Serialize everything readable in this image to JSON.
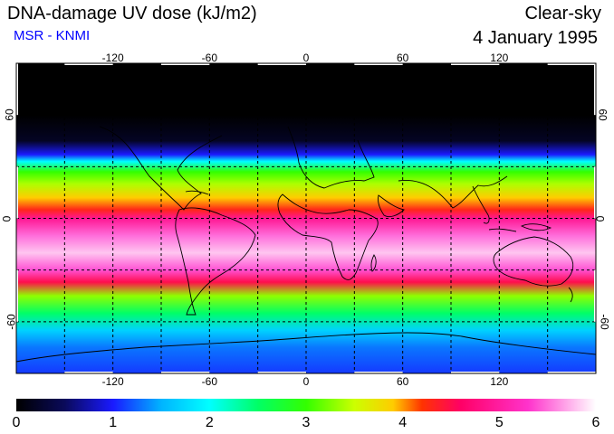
{
  "header": {
    "title": "DNA-damage UV dose (kJ/m2)",
    "subtitle": "MSR - KNMI",
    "subtitle_color": "#0000ff",
    "condition": "Clear-sky",
    "date": "4 January 1995"
  },
  "map": {
    "projection": "equirectangular",
    "lon_range": [
      -180,
      180
    ],
    "lat_range": [
      -90,
      90
    ],
    "lon_ticks": [
      {
        "value": -120,
        "label": "-120"
      },
      {
        "value": -60,
        "label": "-60"
      },
      {
        "value": 0,
        "label": "0"
      },
      {
        "value": 60,
        "label": "60"
      },
      {
        "value": 120,
        "label": "120"
      }
    ],
    "lat_ticks": [
      {
        "value": 60,
        "label": "60"
      },
      {
        "value": 0,
        "label": "0"
      },
      {
        "value": -60,
        "label": "-60"
      }
    ],
    "field_bands": [
      {
        "lat": 90,
        "value": 0.0
      },
      {
        "lat": 60,
        "value": 0.0
      },
      {
        "lat": 45,
        "value": 0.2
      },
      {
        "lat": 37,
        "value": 1.0
      },
      {
        "lat": 33,
        "value": 2.0
      },
      {
        "lat": 27,
        "value": 3.0
      },
      {
        "lat": 20,
        "value": 3.4
      },
      {
        "lat": 12,
        "value": 3.9
      },
      {
        "lat": 5,
        "value": 4.3
      },
      {
        "lat": 0,
        "value": 4.9
      },
      {
        "lat": -10,
        "value": 5.5
      },
      {
        "lat": -20,
        "value": 5.8
      },
      {
        "lat": -30,
        "value": 5.4
      },
      {
        "lat": -37,
        "value": 4.5
      },
      {
        "lat": -45,
        "value": 3.3
      },
      {
        "lat": -55,
        "value": 2.5
      },
      {
        "lat": -65,
        "value": 1.7
      },
      {
        "lat": -75,
        "value": 1.3
      },
      {
        "lat": -90,
        "value": 1.1
      }
    ]
  },
  "colorbar": {
    "min": 0,
    "max": 6,
    "labels": [
      "0",
      "1",
      "2",
      "3",
      "4",
      "5",
      "6"
    ],
    "stops": [
      {
        "value": 0.0,
        "color": "#000000"
      },
      {
        "value": 0.5,
        "color": "#0a0a5a"
      },
      {
        "value": 1.0,
        "color": "#1a1aff"
      },
      {
        "value": 1.5,
        "color": "#00b4ff"
      },
      {
        "value": 2.0,
        "color": "#00ffff"
      },
      {
        "value": 2.5,
        "color": "#00ff66"
      },
      {
        "value": 3.0,
        "color": "#33ff00"
      },
      {
        "value": 3.5,
        "color": "#ccff00"
      },
      {
        "value": 3.9,
        "color": "#ffcc00"
      },
      {
        "value": 4.2,
        "color": "#ff3300"
      },
      {
        "value": 4.6,
        "color": "#ff0066"
      },
      {
        "value": 5.3,
        "color": "#ff33cc"
      },
      {
        "value": 6.0,
        "color": "#ffffff"
      }
    ]
  }
}
